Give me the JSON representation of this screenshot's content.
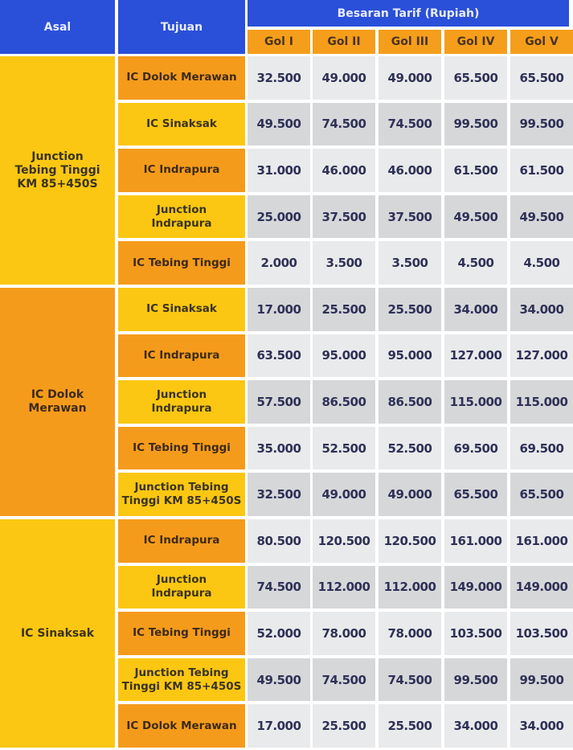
{
  "header": {
    "asal": "Asal",
    "tujuan": "Tujuan",
    "tarif": "Besaran Tarif (Rupiah)",
    "golongan": [
      "Gol I",
      "Gol II",
      "Gol III",
      "Gol IV",
      "Gol V"
    ]
  },
  "colors": {
    "header_blue": "#2a4fd9",
    "yellow": "#fbc712",
    "orange": "#f59b1c",
    "cell_light": "#e9eaeb",
    "cell_dark": "#d6d7d9"
  },
  "groups": [
    {
      "asal": "Junction Tebing Tinggi KM 85+450S",
      "color": "yellow",
      "rows": [
        {
          "tujuan": "IC Dolok Merawan",
          "values": [
            "32.500",
            "49.000",
            "49.000",
            "65.500",
            "65.500"
          ]
        },
        {
          "tujuan": "IC Sinaksak",
          "values": [
            "49.500",
            "74.500",
            "74.500",
            "99.500",
            "99.500"
          ]
        },
        {
          "tujuan": "IC Indrapura",
          "values": [
            "31.000",
            "46.000",
            "46.000",
            "61.500",
            "61.500"
          ]
        },
        {
          "tujuan": "Junction Indrapura",
          "values": [
            "25.000",
            "37.500",
            "37.500",
            "49.500",
            "49.500"
          ]
        },
        {
          "tujuan": "IC Tebing Tinggi",
          "values": [
            "2.000",
            "3.500",
            "3.500",
            "4.500",
            "4.500"
          ]
        }
      ]
    },
    {
      "asal": "IC Dolok Merawan",
      "color": "orange",
      "rows": [
        {
          "tujuan": "IC Sinaksak",
          "values": [
            "17.000",
            "25.500",
            "25.500",
            "34.000",
            "34.000"
          ]
        },
        {
          "tujuan": "IC Indrapura",
          "values": [
            "63.500",
            "95.000",
            "95.000",
            "127.000",
            "127.000"
          ]
        },
        {
          "tujuan": "Junction Indrapura",
          "values": [
            "57.500",
            "86.500",
            "86.500",
            "115.000",
            "115.000"
          ]
        },
        {
          "tujuan": "IC Tebing Tinggi",
          "values": [
            "35.000",
            "52.500",
            "52.500",
            "69.500",
            "69.500"
          ]
        },
        {
          "tujuan": "Junction Tebing Tinggi KM 85+450S",
          "values": [
            "32.500",
            "49.000",
            "49.000",
            "65.500",
            "65.500"
          ]
        }
      ]
    },
    {
      "asal": "IC Sinaksak",
      "color": "yellow",
      "rows": [
        {
          "tujuan": "IC Indrapura",
          "values": [
            "80.500",
            "120.500",
            "120.500",
            "161.000",
            "161.000"
          ]
        },
        {
          "tujuan": "Junction Indrapura",
          "values": [
            "74.500",
            "112.000",
            "112.000",
            "149.000",
            "149.000"
          ]
        },
        {
          "tujuan": "IC Tebing Tinggi",
          "values": [
            "52.000",
            "78.000",
            "78.000",
            "103.500",
            "103.500"
          ]
        },
        {
          "tujuan": "Junction Tebing Tinggi KM 85+450S",
          "values": [
            "49.500",
            "74.500",
            "74.500",
            "99.500",
            "99.500"
          ]
        },
        {
          "tujuan": "IC Dolok Merawan",
          "values": [
            "17.000",
            "25.500",
            "25.500",
            "34.000",
            "34.000"
          ]
        }
      ]
    }
  ]
}
